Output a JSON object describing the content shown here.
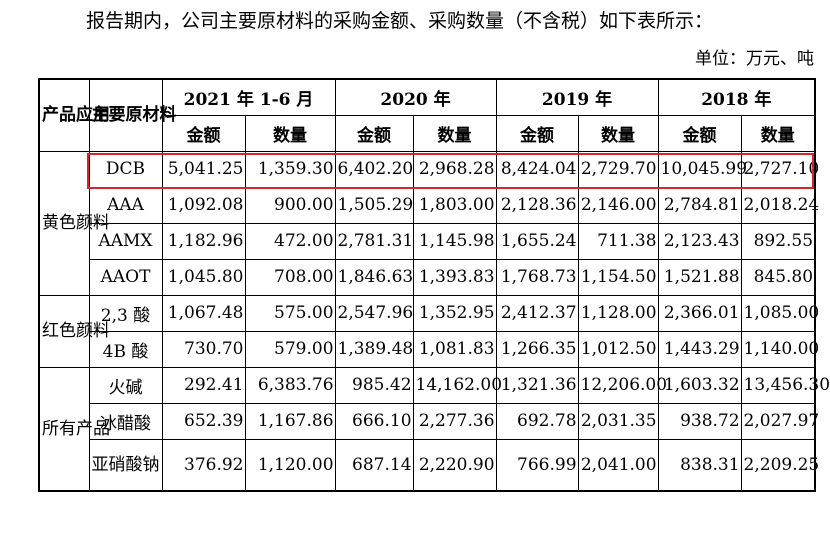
{
  "intro": "报告期内，公司主要原材料的采购金额、采购数量（不含税）如下表所示：",
  "unit": "单位：万元、吨",
  "headers": {
    "application": "产品应用",
    "material": "主要原材料",
    "periods": [
      "2021 年 1-6 月",
      "2020 年",
      "2019 年",
      "2018 年"
    ],
    "amount": "金额",
    "quantity": "数量"
  },
  "groups": [
    {
      "application": "黄色颜料",
      "rows": [
        {
          "material": "DCB",
          "values": [
            "5,041.25",
            "1,359.30",
            "6,402.20",
            "2,968.28",
            "8,424.04",
            "2,729.70",
            "10,045.99",
            "2,727.10"
          ]
        },
        {
          "material": "AAA",
          "values": [
            "1,092.08",
            "900.00",
            "1,505.29",
            "1,803.00",
            "2,128.36",
            "2,146.00",
            "2,784.81",
            "2,018.24"
          ]
        },
        {
          "material": "AAMX",
          "values": [
            "1,182.96",
            "472.00",
            "2,781.31",
            "1,145.98",
            "1,655.24",
            "711.38",
            "2,123.43",
            "892.55"
          ]
        },
        {
          "material": "AAOT",
          "values": [
            "1,045.80",
            "708.00",
            "1,846.63",
            "1,393.83",
            "1,768.73",
            "1,154.50",
            "1,521.88",
            "845.80"
          ]
        }
      ]
    },
    {
      "application": "红色颜料",
      "rows": [
        {
          "material": "2,3 酸",
          "values": [
            "1,067.48",
            "575.00",
            "2,547.96",
            "1,352.95",
            "2,412.37",
            "1,128.00",
            "2,366.01",
            "1,085.00"
          ]
        },
        {
          "material": "4B 酸",
          "values": [
            "730.70",
            "579.00",
            "1,389.48",
            "1,081.83",
            "1,266.35",
            "1,012.50",
            "1,443.29",
            "1,140.00"
          ]
        }
      ]
    },
    {
      "application": "所有产品",
      "rows": [
        {
          "material": "火碱",
          "values": [
            "292.41",
            "6,383.76",
            "985.42",
            "14,162.00",
            "1,321.36",
            "12,206.00",
            "1,603.32",
            "13,456.30"
          ]
        },
        {
          "material": "冰醋酸",
          "values": [
            "652.39",
            "1,167.86",
            "666.10",
            "2,277.36",
            "692.78",
            "2,031.35",
            "938.72",
            "2,027.97"
          ]
        },
        {
          "material": "亚硝酸钠",
          "values": [
            "376.92",
            "1,120.00",
            "687.14",
            "2,220.90",
            "766.99",
            "2,041.00",
            "838.31",
            "2,209.25"
          ]
        }
      ]
    }
  ],
  "highlight_color": "#d9232e"
}
